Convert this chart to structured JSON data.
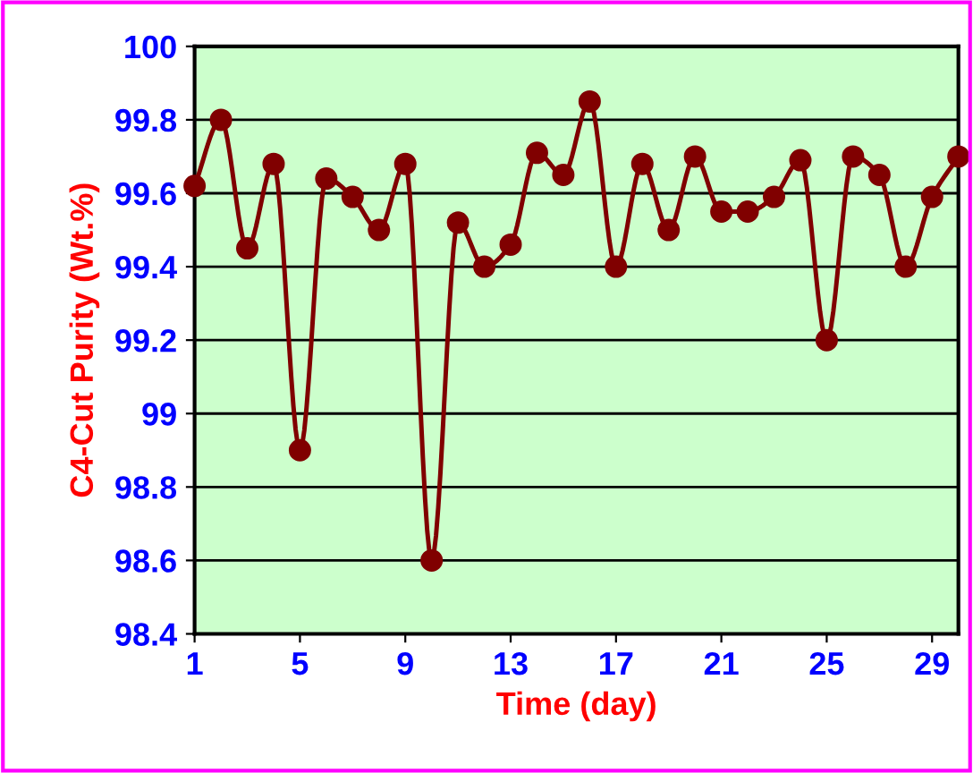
{
  "chart_data": {
    "type": "line",
    "xlabel": "Time (day)",
    "ylabel": "C4-Cut Purity (Wt.%)",
    "x": [
      1,
      2,
      3,
      4,
      5,
      6,
      7,
      8,
      9,
      10,
      11,
      12,
      13,
      14,
      15,
      16,
      17,
      18,
      19,
      20,
      21,
      22,
      23,
      24,
      25,
      26,
      27,
      28,
      29,
      30
    ],
    "series": [
      {
        "color": "#800000",
        "values": [
          99.62,
          99.8,
          99.45,
          99.68,
          98.9,
          99.64,
          99.59,
          99.5,
          99.68,
          98.6,
          99.52,
          99.4,
          99.46,
          99.71,
          99.65,
          99.85,
          99.4,
          99.68,
          99.5,
          99.7,
          99.55,
          99.55,
          99.59,
          99.69,
          99.2,
          99.7,
          99.65,
          99.4,
          99.59,
          99.7
        ]
      }
    ],
    "xlim": [
      1,
      30
    ],
    "xticks": [
      1,
      5,
      9,
      13,
      17,
      21,
      25,
      29
    ],
    "ylim": [
      98.4,
      100
    ],
    "yticks": [
      98.4,
      98.6,
      98.8,
      99,
      99.2,
      99.4,
      99.6,
      99.8,
      100
    ],
    "grid": "y",
    "marker": "circle",
    "line_style": "solid",
    "legend": false
  }
}
